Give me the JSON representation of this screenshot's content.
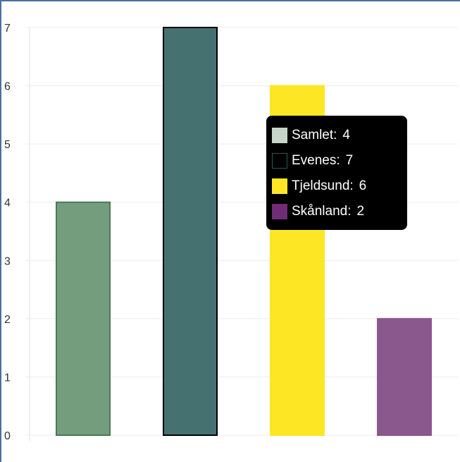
{
  "chart_data": {
    "type": "bar",
    "categories": [
      "Samlet",
      "Evenes",
      "Tjeldsund",
      "Skånland"
    ],
    "values": [
      4,
      7,
      6,
      2
    ],
    "colors": [
      "#739d7c",
      "#467171",
      "#fde725",
      "#8b588d"
    ],
    "border_colors": [
      "#4a7a55",
      "#000000",
      "#fde725",
      "#8b588d"
    ],
    "title": "",
    "xlabel": "",
    "ylabel": "",
    "ylim": [
      0,
      7
    ],
    "yticks": [
      0,
      1,
      2,
      3,
      4,
      5,
      6,
      7
    ],
    "grid": true,
    "tooltip": {
      "rows": [
        {
          "label": "Samlet",
          "value": "4",
          "swatch": "#c5d6c9",
          "swatch_border": "#c5d6c9"
        },
        {
          "label": "Evenes",
          "value": "7",
          "swatch": "#000000",
          "swatch_border": "#2f5555"
        },
        {
          "label": "Tjeldsund",
          "value": "6",
          "swatch": "#fde725",
          "swatch_border": "#fde725"
        },
        {
          "label": "Skånland",
          "value": "2",
          "swatch": "#6e2d74",
          "swatch_border": "#6e2d74"
        }
      ]
    }
  }
}
